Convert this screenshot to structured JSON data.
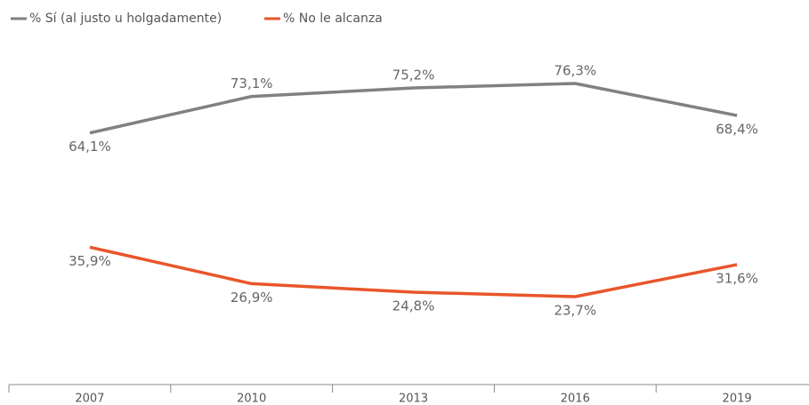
{
  "chart_data": {
    "type": "line",
    "categories": [
      "2007",
      "2010",
      "2013",
      "2016",
      "2019"
    ],
    "series": [
      {
        "name": "% Sí (al justo u holgadamente)",
        "color": "#808185",
        "values": [
          64.1,
          73.1,
          75.2,
          76.3,
          68.4
        ],
        "value_labels": [
          "64,1%",
          "73,1%",
          "75,2%",
          "76,3%",
          "68,4%"
        ]
      },
      {
        "name": "% No le alcanza",
        "color": "#e9552b",
        "values": [
          35.9,
          26.9,
          24.8,
          23.7,
          31.6
        ],
        "value_labels": [
          "35,9%",
          "26,9%",
          "24,8%",
          "23,7%",
          "31,6%"
        ]
      }
    ],
    "legend": "top-left"
  }
}
